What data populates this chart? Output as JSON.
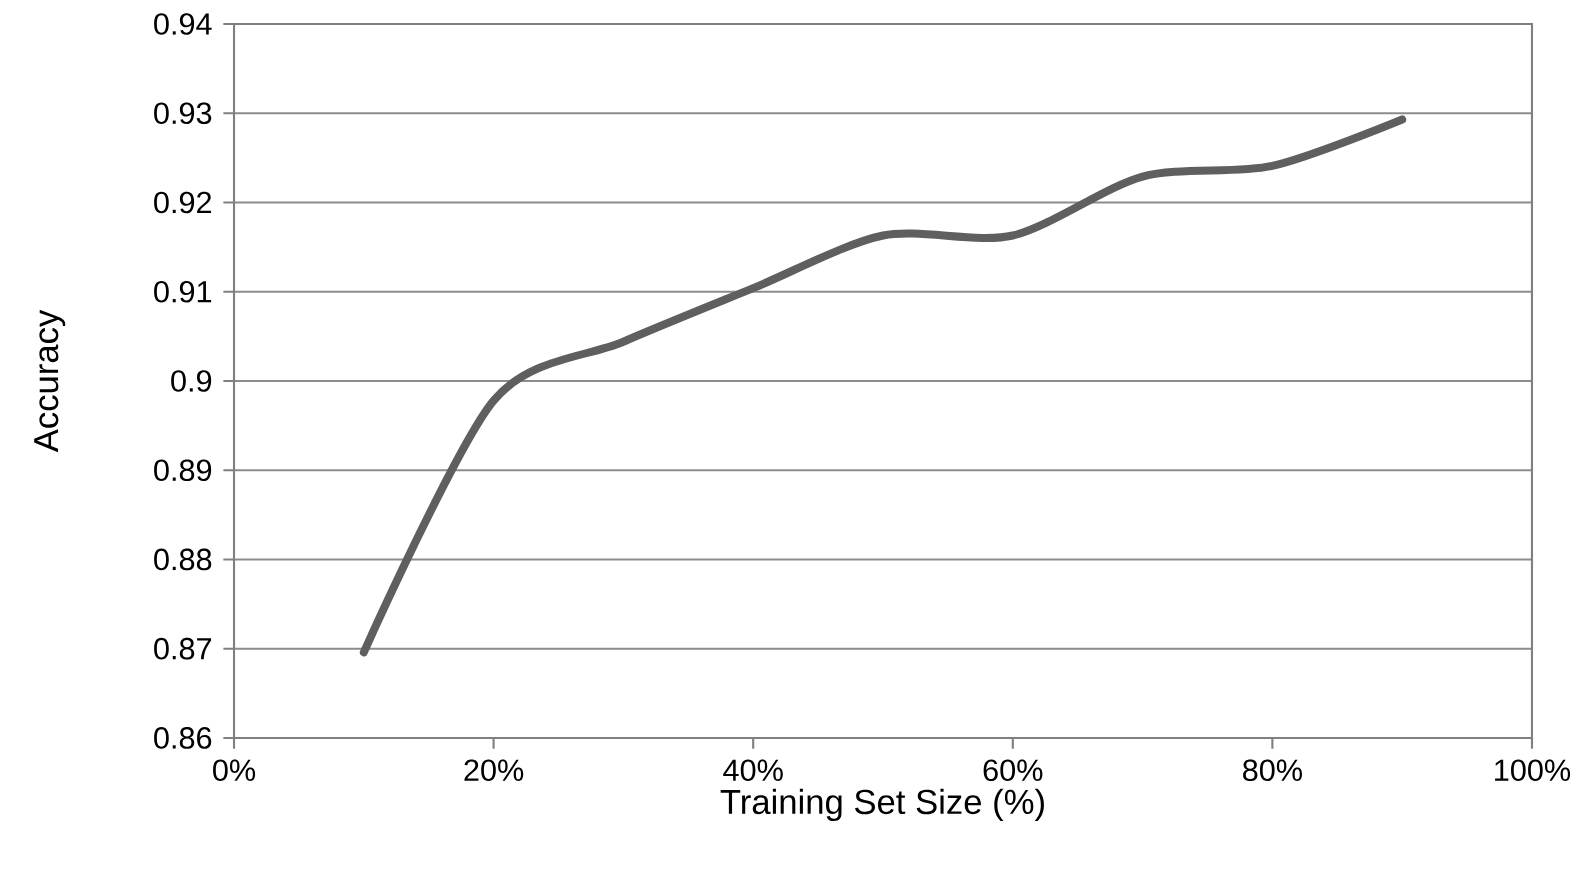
{
  "chart_data": {
    "type": "line",
    "xlabel": "Training Set Size (%)",
    "ylabel": "Accuracy",
    "x": [
      10,
      20,
      30,
      40,
      50,
      60,
      70,
      80,
      90
    ],
    "series": [
      {
        "color": "#5f5f5f",
        "values": [
          0.8696,
          0.8978,
          0.9044,
          0.9104,
          0.9163,
          0.9163,
          0.9229,
          0.9241,
          0.9293
        ]
      }
    ],
    "xlim": [
      0,
      100
    ],
    "xticks": [
      {
        "value": 0,
        "label": "0%"
      },
      {
        "value": 20,
        "label": "20%"
      },
      {
        "value": 40,
        "label": "40%"
      },
      {
        "value": 60,
        "label": "60%"
      },
      {
        "value": 80,
        "label": "80%"
      },
      {
        "value": 100,
        "label": "100%"
      }
    ],
    "ylim": [
      0.86,
      0.94
    ],
    "yticks": [
      0.86,
      0.87,
      0.88,
      0.89,
      0.9,
      0.91,
      0.92,
      0.93,
      0.94
    ],
    "grid": "y",
    "marker": "none",
    "line_style": "solid"
  }
}
